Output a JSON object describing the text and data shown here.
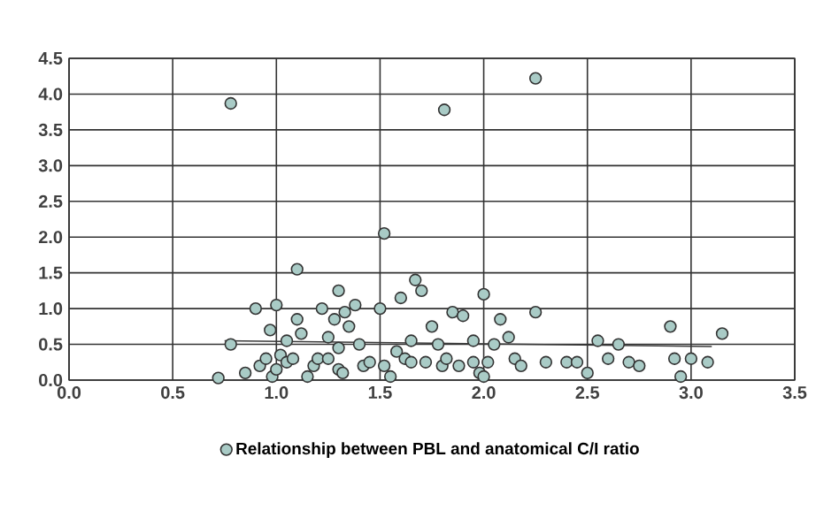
{
  "chart_data": {
    "type": "scatter",
    "xlim": [
      0,
      3.5
    ],
    "ylim": [
      0,
      4.5
    ],
    "xticks": [
      {
        "value": 0,
        "label": "0.0"
      },
      {
        "value": 0.5,
        "label": "0.5"
      },
      {
        "value": 1,
        "label": "1.0"
      },
      {
        "value": 1.5,
        "label": "1.5"
      },
      {
        "value": 2,
        "label": "2.0"
      },
      {
        "value": 2.5,
        "label": "2.5"
      },
      {
        "value": 3,
        "label": "3.0"
      },
      {
        "value": 3.5,
        "label": "3.5"
      }
    ],
    "yticks": [
      {
        "value": 0,
        "label": "0.0"
      },
      {
        "value": 0.5,
        "label": "0.5"
      },
      {
        "value": 1,
        "label": "1.0"
      },
      {
        "value": 1.5,
        "label": "1.5"
      },
      {
        "value": 2,
        "label": "2.0"
      },
      {
        "value": 2.5,
        "label": "2.5"
      },
      {
        "value": 3,
        "label": "3.0"
      },
      {
        "value": 3.5,
        "label": "3.5"
      },
      {
        "value": 4,
        "label": "4.0"
      },
      {
        "value": 4.5,
        "label": "4.5"
      }
    ],
    "grid": true,
    "legend": "bottom",
    "marker": "circle",
    "series": [
      {
        "name": "Relationship between PBL and anatomical C/I ratio",
        "color": "#a9cbc6",
        "x": [
          0.78,
          1.81,
          2.25,
          0.72,
          0.78,
          0.85,
          0.9,
          0.92,
          0.95,
          0.97,
          0.98,
          1.0,
          1.0,
          1.02,
          1.05,
          1.05,
          1.08,
          1.1,
          1.1,
          1.12,
          1.15,
          1.18,
          1.2,
          1.22,
          1.25,
          1.25,
          1.28,
          1.3,
          1.3,
          1.3,
          1.32,
          1.33,
          1.35,
          1.38,
          1.4,
          1.42,
          1.45,
          1.5,
          1.52,
          1.52,
          1.55,
          1.58,
          1.6,
          1.62,
          1.65,
          1.65,
          1.67,
          1.7,
          1.72,
          1.75,
          1.78,
          1.8,
          1.82,
          1.85,
          1.88,
          1.9,
          1.95,
          1.95,
          1.98,
          2.0,
          2.0,
          2.02,
          2.05,
          2.08,
          2.12,
          2.15,
          2.18,
          2.25,
          2.3,
          2.4,
          2.45,
          2.5,
          2.55,
          2.6,
          2.65,
          2.7,
          2.75,
          2.9,
          2.92,
          2.95,
          3.0,
          3.08,
          3.15
        ],
        "values": [
          3.87,
          3.78,
          4.22,
          0.03,
          0.5,
          0.1,
          1.0,
          0.2,
          0.3,
          0.7,
          0.05,
          1.05,
          0.15,
          0.35,
          0.55,
          0.25,
          0.3,
          0.85,
          1.55,
          0.65,
          0.05,
          0.2,
          0.3,
          1.0,
          0.6,
          0.3,
          0.85,
          1.25,
          0.15,
          0.45,
          0.1,
          0.95,
          0.75,
          1.05,
          0.5,
          0.2,
          0.25,
          1.0,
          2.05,
          0.2,
          0.05,
          0.4,
          1.15,
          0.3,
          0.25,
          0.55,
          1.4,
          1.25,
          0.25,
          0.75,
          0.5,
          0.2,
          0.3,
          0.95,
          0.2,
          0.9,
          0.55,
          0.25,
          0.1,
          1.2,
          0.05,
          0.25,
          0.5,
          0.85,
          0.6,
          0.3,
          0.2,
          0.95,
          0.25,
          0.25,
          0.25,
          0.1,
          0.55,
          0.3,
          0.5,
          0.25,
          0.2,
          0.75,
          0.3,
          0.05,
          0.3,
          0.25,
          0.65
        ]
      },
      {
        "type": "line",
        "marker": "none",
        "color": "#3a3a3a",
        "x": [
          0.75,
          3.1
        ],
        "values": [
          0.55,
          0.47
        ]
      }
    ]
  }
}
